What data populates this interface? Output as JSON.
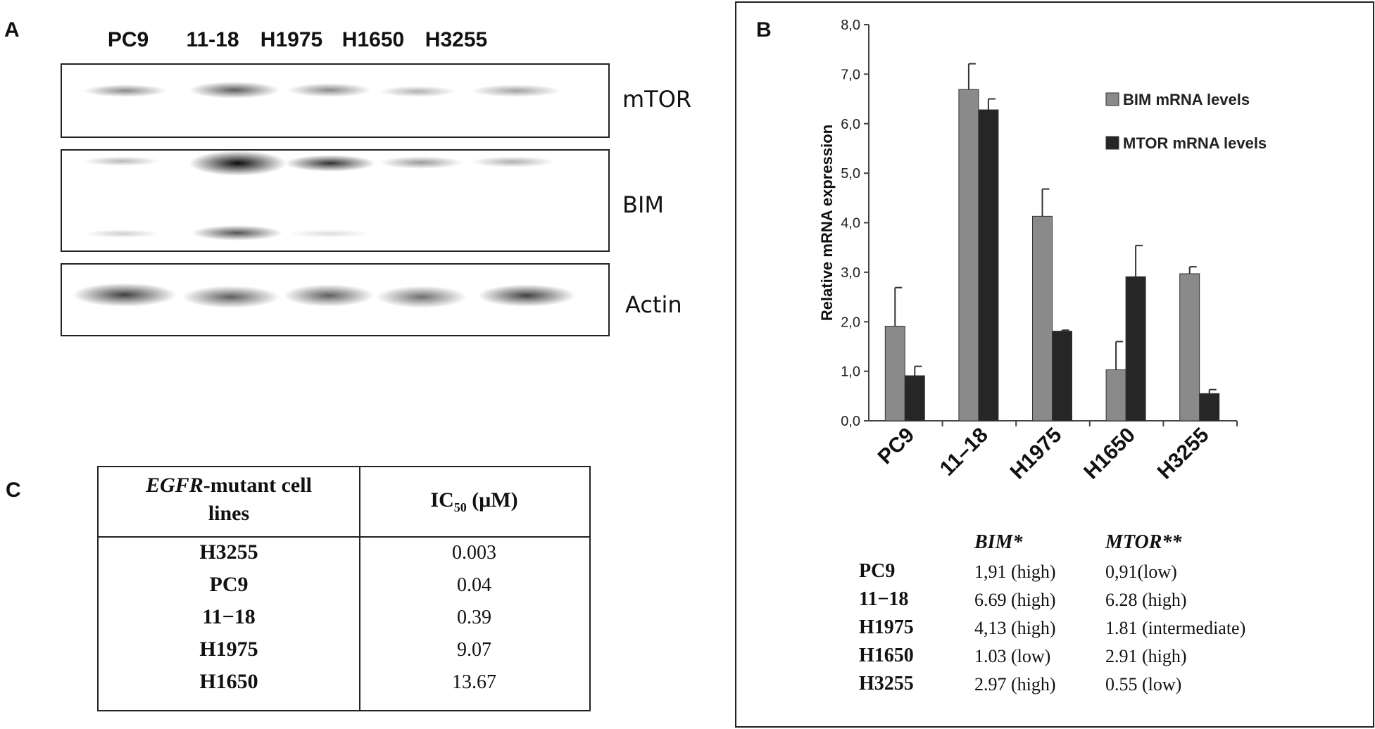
{
  "panelA": {
    "label": "A",
    "lanes": [
      "PC9",
      "11-18",
      "H1975",
      "H1650",
      "H3255"
    ],
    "blots": [
      "mTOR",
      "BIM",
      "Actin"
    ]
  },
  "panelB": {
    "label": "B",
    "chart_data": {
      "type": "bar",
      "categories": [
        "PC9",
        "11–18",
        "H1975",
        "H1650",
        "H3255"
      ],
      "series": [
        {
          "name": "BIM mRNA levels",
          "values": [
            1.91,
            6.69,
            4.13,
            1.03,
            2.97
          ],
          "errors": [
            0.78,
            0.52,
            0.55,
            0.57,
            0.14
          ],
          "color": "#8a8a8a"
        },
        {
          "name": "MTOR mRNA levels",
          "values": [
            0.91,
            6.28,
            1.81,
            2.91,
            0.55
          ],
          "errors": [
            0.19,
            0.22,
            0.02,
            0.63,
            0.08
          ],
          "color": "#262626"
        }
      ],
      "ylabel": "Relative mRNA expression",
      "ylim": [
        0,
        8
      ],
      "yticks": [
        "0,0",
        "1,0",
        "2,0",
        "3,0",
        "4,0",
        "5,0",
        "6,0",
        "7,0",
        "8,0"
      ],
      "legend": "top-right",
      "grid": false
    },
    "summary": {
      "headers": [
        "BIM*",
        "MTOR**"
      ],
      "rows": [
        {
          "line": "PC9",
          "bim": "1,91 (high)",
          "mtor": "0,91(low)"
        },
        {
          "line": "11−18",
          "bim": "6.69 (high)",
          "mtor": "6.28 (high)"
        },
        {
          "line": "H1975",
          "bim": "4,13 (high)",
          "mtor": "1.81 (intermediate)"
        },
        {
          "line": "H1650",
          "bim": "1.03 (low)",
          "mtor": "2.91 (high)"
        },
        {
          "line": "H3255",
          "bim": "2.97 (high)",
          "mtor": "0.55 (low)"
        }
      ]
    }
  },
  "panelC": {
    "label": "C",
    "header_italic": "EGFR",
    "header_rest_line1": "-mutant cell",
    "header_line2": "lines",
    "header_ic": "IC",
    "header_sub": "50",
    "header_unit": " (μM)",
    "rows": [
      {
        "line": "H3255",
        "ic50": "0.003"
      },
      {
        "line": "PC9",
        "ic50": "0.04"
      },
      {
        "line": "11−18",
        "ic50": "0.39"
      },
      {
        "line": "H1975",
        "ic50": "9.07"
      },
      {
        "line": "H1650",
        "ic50": "13.67"
      }
    ]
  }
}
